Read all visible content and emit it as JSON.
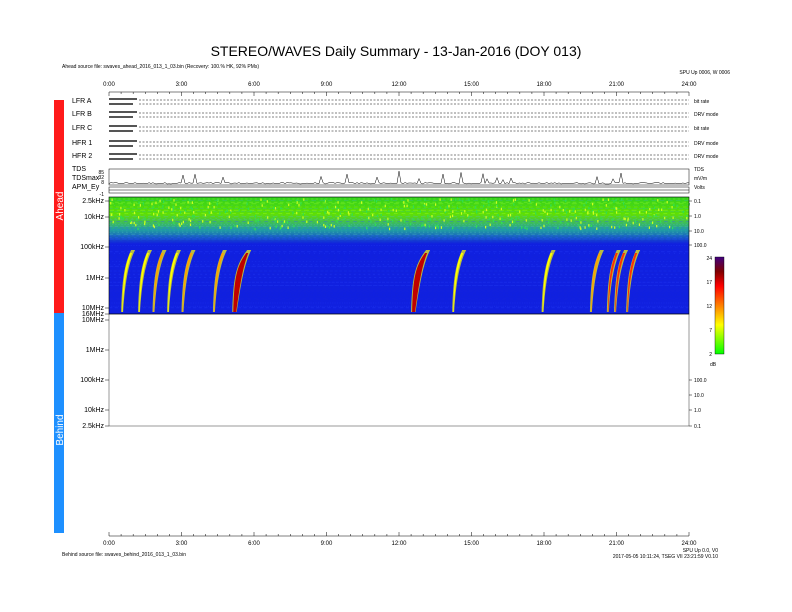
{
  "title": "STEREO/WAVES Daily Summary - 13-Jan-2016 (DOY 013)",
  "source_ahead": "Ahead source file: swaves_ahead_2016_013_1_03.bin (Recovery: 100.% HK, 92% PMs)",
  "source_behind": "Behind source file: swaves_behind_2016_013_1_03.bin",
  "top_right_note": "SPU Up 0006, W 0006",
  "bottom_right_note1": "SPU Up 0.0, V0",
  "bottom_right_note2": "2017-05-05 10:11:24, TSEG VII 23:21:59 V0.10",
  "spacecraft": {
    "ahead": "Ahead",
    "behind": "Behind"
  },
  "time_ticks": [
    "0:00",
    "3:00",
    "6:00",
    "9:00",
    "12:00",
    "15:00",
    "18:00",
    "21:00",
    "24:00"
  ],
  "hk_panels": [
    {
      "label": "LFR A",
      "right": "bit rate"
    },
    {
      "label": "LFR B",
      "right": "DRV mode"
    },
    {
      "label": "LFR C",
      "right": "bit rate"
    },
    {
      "label": "HFR 1",
      "right": "DRV mode"
    },
    {
      "label": "HFR 2",
      "right": "DRV mode"
    },
    {
      "label": "TDS",
      "right": "TDS"
    },
    {
      "label": "TDSmax",
      "right": "mV/m"
    },
    {
      "label": "APM_Ey",
      "right": "Volts"
    }
  ],
  "tds_ticks": [
    "85",
    "32",
    "8"
  ],
  "apm_tick": "-1",
  "freq_axis_ahead": [
    "2.5kHz",
    "10kHz",
    "100kHz",
    "1MHz",
    "10MHz",
    "16MHz"
  ],
  "freq_axis_behind": [
    "10MHz",
    "1MHz",
    "100kHz",
    "10kHz",
    "2.5kHz"
  ],
  "ahead_right_axis": [
    "0.1",
    "1.0",
    "10.0",
    "100.0"
  ],
  "behind_right_axis": [
    "100.0",
    "10.0",
    "1.0",
    "0.1"
  ],
  "colorbar": {
    "ticks": [
      "24",
      "17",
      "12",
      "7",
      "2"
    ],
    "unit": "dB",
    "colors": [
      "#00ff00",
      "#ffff00",
      "#ff8000",
      "#ff0000",
      "#800000",
      "#400080"
    ]
  },
  "chart_data": {
    "type": "heatmap",
    "title": "STEREO/WAVES Daily Summary - 13-Jan-2016 (DOY 013)",
    "x_unit": "hours UT",
    "xlim": [
      0,
      24
    ],
    "colorbar_range_dB": [
      2,
      24
    ],
    "ahead_bursts": [
      {
        "start_hour": 0.5,
        "intensity_dB": 10
      },
      {
        "start_hour": 1.2,
        "intensity_dB": 10
      },
      {
        "start_hour": 1.8,
        "intensity_dB": 12
      },
      {
        "start_hour": 2.4,
        "intensity_dB": 9
      },
      {
        "start_hour": 3.0,
        "intensity_dB": 11
      },
      {
        "start_hour": 4.3,
        "intensity_dB": 12
      },
      {
        "start_hour": 5.1,
        "intensity_dB": 24
      },
      {
        "start_hour": 12.5,
        "intensity_dB": 22
      },
      {
        "start_hour": 14.2,
        "intensity_dB": 10
      },
      {
        "start_hour": 17.9,
        "intensity_dB": 10
      },
      {
        "start_hour": 19.9,
        "intensity_dB": 12
      },
      {
        "start_hour": 20.6,
        "intensity_dB": 18
      },
      {
        "start_hour": 20.9,
        "intensity_dB": 16
      },
      {
        "start_hour": 21.4,
        "intensity_dB": 16
      }
    ]
  }
}
